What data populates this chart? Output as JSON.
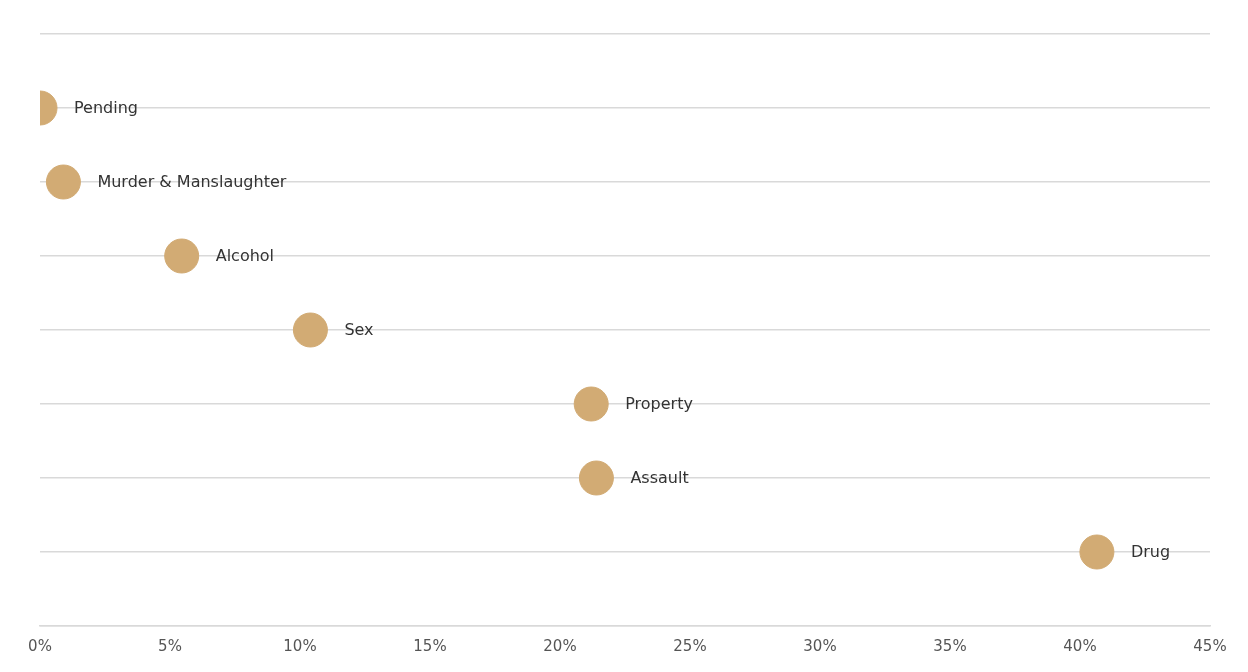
{
  "chart_data": {
    "type": "scatter",
    "orientation": "horizontal",
    "categories": [
      "Pending",
      "Murder & Manslaughter",
      "Alcohol",
      "Sex",
      "Property",
      "Assault",
      "Drug"
    ],
    "values": [
      0,
      0.9,
      5.45,
      10.4,
      21.2,
      21.4,
      40.65
    ],
    "color": "#d2ab74",
    "xlim": [
      0,
      45
    ],
    "xticks": [
      {
        "value": 0,
        "label": "0%"
      },
      {
        "value": 5,
        "label": "5%"
      },
      {
        "value": 10,
        "label": "10%"
      },
      {
        "value": 15,
        "label": "15%"
      },
      {
        "value": 20,
        "label": "20%"
      },
      {
        "value": 25,
        "label": "25%"
      },
      {
        "value": 30,
        "label": "30%"
      },
      {
        "value": 35,
        "label": "35%"
      },
      {
        "value": 40,
        "label": "40%"
      },
      {
        "value": 45,
        "label": "45%"
      }
    ],
    "grid": "y",
    "legend": false,
    "tick_labels": "x",
    "marker": "circle"
  }
}
